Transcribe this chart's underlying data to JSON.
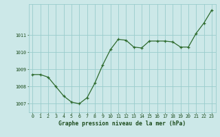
{
  "x": [
    0,
    1,
    2,
    3,
    4,
    5,
    6,
    7,
    8,
    9,
    10,
    11,
    12,
    13,
    14,
    15,
    16,
    17,
    18,
    19,
    20,
    21,
    22,
    23
  ],
  "y": [
    1008.7,
    1008.7,
    1008.55,
    1008.0,
    1007.45,
    1007.1,
    1007.0,
    1007.35,
    1008.2,
    1009.25,
    1010.15,
    1010.75,
    1010.7,
    1010.3,
    1010.25,
    1010.65,
    1010.65,
    1010.65,
    1010.6,
    1010.3,
    1010.3,
    1011.1,
    1011.7,
    1012.45
  ],
  "line_color": "#2d6a2d",
  "marker_color": "#2d6a2d",
  "bg_color": "#cce8e8",
  "grid_color": "#99cccc",
  "xlabel": "Graphe pression niveau de la mer (hPa)",
  "xlabel_color": "#1a4a1a",
  "tick_color": "#1a4a1a",
  "ylim_min": 1006.5,
  "ylim_max": 1012.8,
  "yticks": [
    1007,
    1008,
    1009,
    1010,
    1011
  ],
  "xlim_min": -0.5,
  "xlim_max": 23.5
}
